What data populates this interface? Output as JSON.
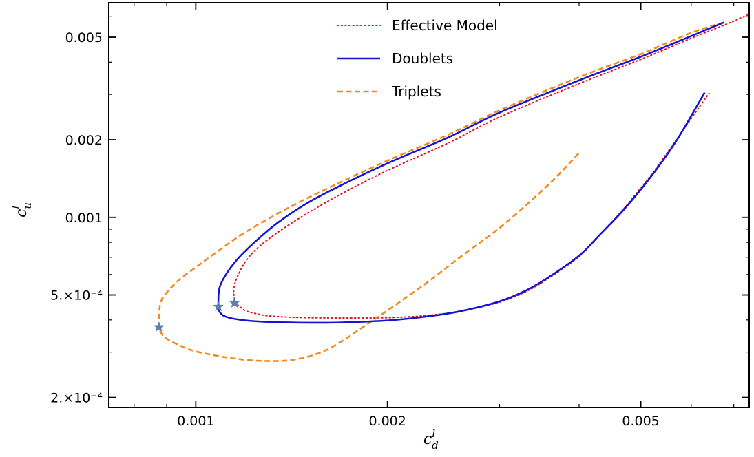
{
  "chart_data": {
    "type": "line",
    "xscale": "log",
    "yscale": "log",
    "xlim": [
      0.00073,
      0.0074
    ],
    "ylim": [
      0.000183,
      0.0068
    ],
    "xticks": [
      {
        "value": 0.001,
        "label": "0.001"
      },
      {
        "value": 0.002,
        "label": "0.002"
      },
      {
        "value": 0.005,
        "label": "0.005"
      }
    ],
    "yticks": [
      {
        "value": 0.0002,
        "label": "2.×10⁻⁴"
      },
      {
        "value": 0.0005,
        "label": "5.×10⁻⁴"
      },
      {
        "value": 0.001,
        "label": "0.001"
      },
      {
        "value": 0.002,
        "label": "0.002"
      },
      {
        "value": 0.005,
        "label": "0.005"
      }
    ],
    "xlabel": {
      "base": "c",
      "sup": "l",
      "sub": "d"
    },
    "ylabel": {
      "base": "c",
      "sup": "l",
      "sub": "u"
    },
    "legend_position": "top-center",
    "series": [
      {
        "name": "Effective Model",
        "color": "#e8121f",
        "style": "dotted",
        "x": [
          0.00736,
          0.0068,
          0.006,
          0.005,
          0.004,
          0.003,
          0.0025,
          0.002,
          0.0017,
          0.0015,
          0.00135,
          0.00125,
          0.0012,
          0.00117,
          0.00115,
          0.001148,
          0.00116,
          0.00118,
          0.0012,
          0.00125,
          0.0013,
          0.0014,
          0.0015,
          0.0017,
          0.002,
          0.0023,
          0.0026,
          0.003,
          0.0033,
          0.0036,
          0.004,
          0.0043,
          0.0047,
          0.0052,
          0.0057,
          0.0064
        ],
        "y": [
          0.0061,
          0.0056,
          0.00495,
          0.0041,
          0.0033,
          0.00245,
          0.00195,
          0.00152,
          0.00124,
          0.00104,
          0.00088,
          0.00076,
          0.00068,
          0.00061,
          0.000545,
          0.000495,
          0.000462,
          0.000445,
          0.000433,
          0.000422,
          0.000415,
          0.00041,
          0.000408,
          0.000407,
          0.000408,
          0.000416,
          0.000432,
          0.000469,
          0.000515,
          0.000585,
          0.000705,
          0.00085,
          0.00108,
          0.00147,
          0.00202,
          0.00303
        ]
      },
      {
        "name": "Doublets",
        "color": "#1414d4",
        "style": "solid",
        "x": [
          0.00675,
          0.006,
          0.005,
          0.004,
          0.003,
          0.0025,
          0.002,
          0.0017,
          0.0015,
          0.00135,
          0.00125,
          0.00117,
          0.00112,
          0.00109,
          0.001085,
          0.00109,
          0.00112,
          0.0012,
          0.0013,
          0.0015,
          0.0017,
          0.002,
          0.0023,
          0.0026,
          0.003,
          0.0033,
          0.0036,
          0.004,
          0.0043,
          0.0047,
          0.0052,
          0.0057,
          0.0063
        ],
        "y": [
          0.0057,
          0.00505,
          0.0042,
          0.0034,
          0.00255,
          0.00205,
          0.00162,
          0.00134,
          0.00114,
          0.00096,
          0.00082,
          0.0007,
          0.00061,
          0.000535,
          0.000465,
          0.00043,
          0.00041,
          0.000398,
          0.000393,
          0.00039,
          0.000391,
          0.000398,
          0.000412,
          0.000432,
          0.000472,
          0.00052,
          0.00059,
          0.00071,
          0.00085,
          0.00107,
          0.00145,
          0.002,
          0.00305
        ]
      },
      {
        "name": "Triplets",
        "color": "#f28a22",
        "style": "dashed",
        "x": [
          0.00675,
          0.006,
          0.005,
          0.004,
          0.003,
          0.0025,
          0.002,
          0.0017,
          0.0015,
          0.00135,
          0.0012,
          0.0011,
          0.001,
          0.00094,
          0.0009,
          0.00088,
          0.000875,
          0.00088,
          0.0009,
          0.00095,
          0.001,
          0.0011,
          0.0012,
          0.0013,
          0.0014,
          0.0015,
          0.0016,
          0.0017,
          0.0018,
          0.002,
          0.0023,
          0.0026,
          0.003,
          0.0034,
          0.0037,
          0.004
        ],
        "y": [
          0.0057,
          0.0052,
          0.0043,
          0.0035,
          0.0026,
          0.0021,
          0.00166,
          0.00138,
          0.00119,
          0.00104,
          0.00088,
          0.00076,
          0.00064,
          0.00057,
          0.00051,
          0.000465,
          0.000395,
          0.00036,
          0.000338,
          0.000316,
          0.000302,
          0.000288,
          0.00028,
          0.000277,
          0.000279,
          0.000288,
          0.000305,
          0.000332,
          0.000365,
          0.000435,
          0.000555,
          0.0007,
          0.00091,
          0.00119,
          0.00145,
          0.00178
        ]
      }
    ],
    "markers": [
      {
        "x": 0.000875,
        "y": 0.000375,
        "color": "#5a7fb0"
      },
      {
        "x": 0.001085,
        "y": 0.00045,
        "color": "#5a7fb0"
      },
      {
        "x": 0.00115,
        "y": 0.000465,
        "color": "#5a7fb0"
      }
    ]
  }
}
